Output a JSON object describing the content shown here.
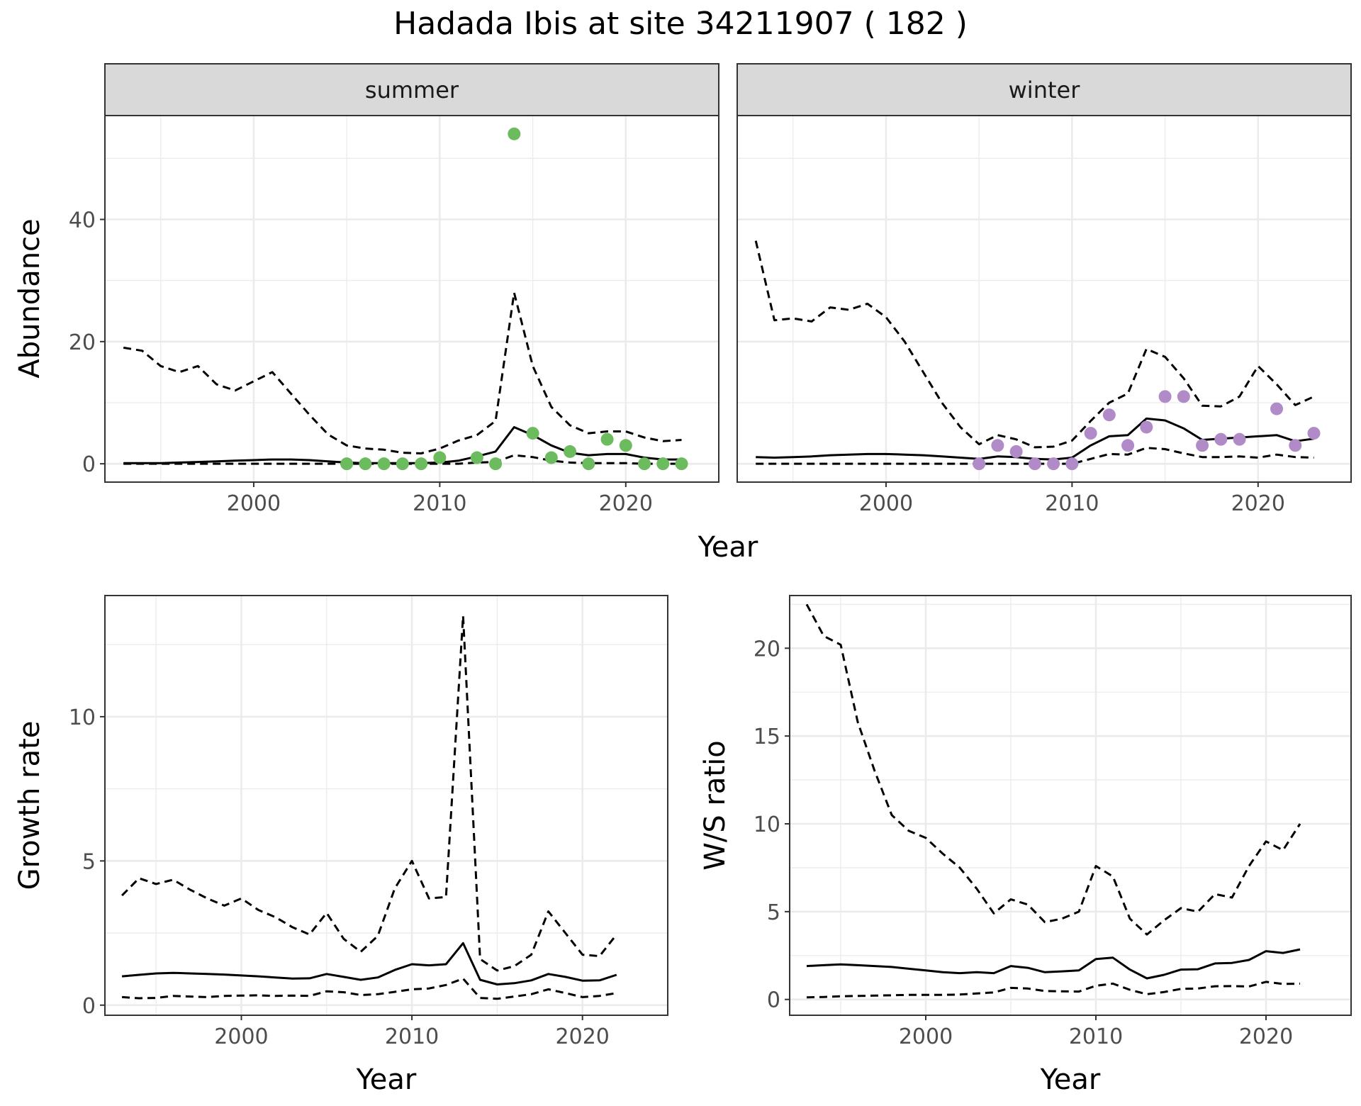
{
  "page_title": "Hadada Ibis at site 34211907 ( 182 )",
  "colors": {
    "summer_points": "#6DBB5F",
    "winter_points": "#B18AC8",
    "strip_bg": "#D9D9D9",
    "grid": "#EBEBEB",
    "line": "#000000"
  },
  "chart_data": [
    {
      "id": "abundance",
      "type": "line",
      "title": "",
      "xlabel": "Year",
      "ylabel": "Abundance",
      "xlim": [
        1992,
        2025
      ],
      "ylim": [
        -3,
        57
      ],
      "x_ticks": [
        2000,
        2010,
        2020
      ],
      "y_ticks": [
        0,
        20,
        40
      ],
      "grid": true,
      "panels": [
        {
          "name": "summer",
          "mean": {
            "x": [
              1993,
              1994,
              1995,
              1996,
              1997,
              1998,
              1999,
              2000,
              2001,
              2002,
              2003,
              2004,
              2005,
              2006,
              2007,
              2008,
              2009,
              2010,
              2011,
              2012,
              2013,
              2014,
              2015,
              2016,
              2017,
              2018,
              2019,
              2020,
              2021,
              2022,
              2023
            ],
            "y": [
              0.1,
              0.1,
              0.1,
              0.2,
              0.3,
              0.4,
              0.5,
              0.6,
              0.7,
              0.7,
              0.6,
              0.4,
              0.2,
              0.1,
              0.1,
              0.1,
              0.1,
              0.2,
              0.5,
              1.2,
              2,
              6,
              4.7,
              3,
              1.8,
              1.4,
              1.6,
              1.6,
              1,
              0.7,
              0.7
            ]
          },
          "upper": {
            "x": [
              1993,
              1994,
              1995,
              1996,
              1997,
              1998,
              1999,
              2000,
              2001,
              2002,
              2003,
              2004,
              2005,
              2006,
              2007,
              2008,
              2009,
              2010,
              2011,
              2012,
              2013,
              2014,
              2015,
              2016,
              2017,
              2018,
              2019,
              2020,
              2021,
              2022,
              2023
            ],
            "y": [
              19,
              18.5,
              16,
              15,
              16,
              13,
              12,
              13.5,
              15,
              11.5,
              8,
              4.8,
              3,
              2.5,
              2.3,
              1.8,
              1.7,
              2.5,
              3.8,
              4.7,
              7,
              28,
              16,
              9.3,
              6.3,
              5,
              5.3,
              5.3,
              4.3,
              3.7,
              3.9
            ]
          },
          "lower": {
            "x": [
              1993,
              1994,
              1995,
              1996,
              1997,
              1998,
              1999,
              2000,
              2001,
              2002,
              2003,
              2004,
              2005,
              2006,
              2007,
              2008,
              2009,
              2010,
              2011,
              2012,
              2013,
              2014,
              2015,
              2016,
              2017,
              2018,
              2019,
              2020,
              2021,
              2022,
              2023
            ],
            "y": [
              0,
              0,
              0,
              0,
              0,
              0,
              0,
              0,
              0,
              0,
              0,
              0,
              0,
              0,
              0,
              0,
              0,
              0,
              0,
              0.2,
              0.3,
              1.4,
              1.1,
              0.5,
              0.2,
              0.1,
              0.1,
              0.1,
              0,
              0,
              0
            ]
          },
          "points": {
            "x": [
              2005,
              2006,
              2007,
              2008,
              2009,
              2010,
              2012,
              2013,
              2014,
              2015,
              2016,
              2017,
              2018,
              2019,
              2020,
              2021,
              2022,
              2023
            ],
            "y": [
              0,
              0,
              0,
              0,
              0,
              1,
              1,
              0,
              54,
              5,
              1,
              2,
              0,
              4,
              3,
              0,
              0,
              0
            ]
          }
        },
        {
          "name": "winter",
          "mean": {
            "x": [
              1993,
              1994,
              1995,
              1996,
              1997,
              1998,
              1999,
              2000,
              2001,
              2002,
              2003,
              2004,
              2005,
              2006,
              2007,
              2008,
              2009,
              2010,
              2011,
              2012,
              2013,
              2014,
              2015,
              2016,
              2017,
              2018,
              2019,
              2020,
              2021,
              2022,
              2023
            ],
            "y": [
              1.1,
              1,
              1.1,
              1.2,
              1.4,
              1.5,
              1.6,
              1.6,
              1.5,
              1.4,
              1.2,
              1,
              0.8,
              1.2,
              1.1,
              0.8,
              0.7,
              1,
              3,
              4.5,
              4.7,
              7.4,
              7.1,
              5.8,
              3.9,
              4.1,
              4.3,
              4.5,
              4.7,
              3.7,
              4.1
            ]
          },
          "upper": {
            "x": [
              1993,
              1994,
              1995,
              1996,
              1997,
              1998,
              1999,
              2000,
              2001,
              2002,
              2003,
              2004,
              2005,
              2006,
              2007,
              2008,
              2009,
              2010,
              2011,
              2012,
              2013,
              2014,
              2015,
              2016,
              2017,
              2018,
              2019,
              2020,
              2021,
              2022,
              2023
            ],
            "y": [
              36.5,
              23.5,
              23.8,
              23.3,
              25.6,
              25.2,
              26.2,
              24,
              20,
              15,
              10,
              6,
              3.2,
              4.7,
              4,
              2.7,
              2.8,
              3.8,
              7,
              10,
              11.5,
              18.8,
              17.5,
              14,
              9.5,
              9.4,
              11,
              16,
              13,
              9.6,
              11
            ]
          },
          "lower": {
            "x": [
              1993,
              1994,
              1995,
              1996,
              1997,
              1998,
              1999,
              2000,
              2001,
              2002,
              2003,
              2004,
              2005,
              2006,
              2007,
              2008,
              2009,
              2010,
              2011,
              2012,
              2013,
              2014,
              2015,
              2016,
              2017,
              2018,
              2019,
              2020,
              2021,
              2022,
              2023
            ],
            "y": [
              0,
              0,
              0,
              0,
              0,
              0,
              0,
              0,
              0,
              0,
              0,
              0,
              0,
              0,
              0,
              0,
              0,
              0,
              0.8,
              1.6,
              1.5,
              2.6,
              2.4,
              1.7,
              1.1,
              1.1,
              1.2,
              1,
              1.5,
              1.1,
              1
            ]
          },
          "points": {
            "x": [
              2005,
              2006,
              2007,
              2008,
              2009,
              2010,
              2011,
              2012,
              2013,
              2014,
              2015,
              2016,
              2017,
              2018,
              2019,
              2021,
              2022,
              2023
            ],
            "y": [
              0,
              3,
              2,
              0,
              0,
              0,
              5,
              8,
              3,
              6,
              11,
              11,
              3,
              4,
              4,
              9,
              3,
              5
            ]
          }
        }
      ]
    },
    {
      "id": "growth",
      "type": "line",
      "title": "",
      "xlabel": "Year",
      "ylabel": "Growth rate",
      "xlim": [
        1992,
        2025
      ],
      "ylim": [
        -0.35,
        14.2
      ],
      "x_ticks": [
        2000,
        2010,
        2020
      ],
      "y_ticks": [
        0,
        5,
        10
      ],
      "grid": true,
      "mean": {
        "x": [
          1993,
          1994,
          1995,
          1996,
          1997,
          1998,
          1999,
          2000,
          2001,
          2002,
          2003,
          2004,
          2005,
          2006,
          2007,
          2008,
          2009,
          2010,
          2011,
          2012,
          2013,
          2014,
          2015,
          2016,
          2017,
          2018,
          2019,
          2020,
          2021,
          2022
        ],
        "y": [
          1,
          1.05,
          1.1,
          1.12,
          1.1,
          1.08,
          1.06,
          1.03,
          1,
          0.96,
          0.92,
          0.93,
          1.08,
          0.98,
          0.88,
          0.96,
          1.22,
          1.42,
          1.38,
          1.42,
          2.15,
          0.88,
          0.72,
          0.76,
          0.86,
          1.08,
          0.98,
          0.85,
          0.86,
          1.05
        ]
      },
      "upper": {
        "x": [
          1993,
          1994,
          1995,
          1996,
          1997,
          1998,
          1999,
          2000,
          2001,
          2002,
          2003,
          2004,
          2005,
          2006,
          2007,
          2008,
          2009,
          2010,
          2011,
          2012,
          2013,
          2014,
          2015,
          2016,
          2017,
          2018,
          2019,
          2020,
          2021,
          2022
        ],
        "y": [
          3.8,
          4.4,
          4.2,
          4.35,
          4,
          3.7,
          3.45,
          3.7,
          3.3,
          3.05,
          2.7,
          2.45,
          3.2,
          2.3,
          1.85,
          2.4,
          4.05,
          5,
          3.7,
          3.75,
          13.5,
          1.6,
          1.2,
          1.35,
          1.75,
          3.25,
          2.5,
          1.75,
          1.7,
          2.45
        ]
      },
      "lower": {
        "x": [
          1993,
          1994,
          1995,
          1996,
          1997,
          1998,
          1999,
          2000,
          2001,
          2002,
          2003,
          2004,
          2005,
          2006,
          2007,
          2008,
          2009,
          2010,
          2011,
          2012,
          2013,
          2014,
          2015,
          2016,
          2017,
          2018,
          2019,
          2020,
          2021,
          2022
        ],
        "y": [
          0.28,
          0.24,
          0.25,
          0.32,
          0.3,
          0.28,
          0.32,
          0.33,
          0.34,
          0.32,
          0.33,
          0.32,
          0.48,
          0.45,
          0.35,
          0.38,
          0.46,
          0.55,
          0.58,
          0.7,
          0.92,
          0.25,
          0.22,
          0.3,
          0.38,
          0.55,
          0.42,
          0.28,
          0.32,
          0.42
        ]
      }
    },
    {
      "id": "ws_ratio",
      "type": "line",
      "title": "",
      "xlabel": "Year",
      "ylabel": "W/S ratio",
      "xlim": [
        1992,
        2025
      ],
      "ylim": [
        -0.9,
        23
      ],
      "x_ticks": [
        2000,
        2010,
        2020
      ],
      "y_ticks": [
        0,
        5,
        10,
        15,
        20
      ],
      "grid": true,
      "mean": {
        "x": [
          1993,
          1994,
          1995,
          1996,
          1997,
          1998,
          1999,
          2000,
          2001,
          2002,
          2003,
          2004,
          2005,
          2006,
          2007,
          2008,
          2009,
          2010,
          2011,
          2012,
          2013,
          2014,
          2015,
          2016,
          2017,
          2018,
          2019,
          2020,
          2021,
          2022
        ],
        "y": [
          1.9,
          1.95,
          2,
          1.95,
          1.9,
          1.85,
          1.75,
          1.65,
          1.55,
          1.5,
          1.55,
          1.5,
          1.9,
          1.8,
          1.55,
          1.6,
          1.65,
          2.3,
          2.38,
          1.7,
          1.2,
          1.4,
          1.7,
          1.72,
          2.05,
          2.08,
          2.25,
          2.75,
          2.65,
          2.85
        ]
      },
      "upper": {
        "x": [
          1993,
          1994,
          1995,
          1996,
          1997,
          1998,
          1999,
          2000,
          2001,
          2002,
          2003,
          2004,
          2005,
          2006,
          2007,
          2008,
          2009,
          2010,
          2011,
          2012,
          2013,
          2014,
          2015,
          2016,
          2017,
          2018,
          2019,
          2020,
          2021,
          2022
        ],
        "y": [
          22.5,
          20.7,
          20.2,
          15.8,
          13,
          10.5,
          9.6,
          9.2,
          8.3,
          7.5,
          6.3,
          4.9,
          5.7,
          5.4,
          4.4,
          4.6,
          5,
          7.6,
          7,
          4.6,
          3.7,
          4.5,
          5.2,
          5,
          6,
          5.8,
          7.6,
          9,
          8.5,
          10
        ]
      },
      "lower": {
        "x": [
          1993,
          1994,
          1995,
          1996,
          1997,
          1998,
          1999,
          2000,
          2001,
          2002,
          2003,
          2004,
          2005,
          2006,
          2007,
          2008,
          2009,
          2010,
          2011,
          2012,
          2013,
          2014,
          2015,
          2016,
          2017,
          2018,
          2019,
          2020,
          2021,
          2022
        ],
        "y": [
          0.12,
          0.14,
          0.18,
          0.2,
          0.22,
          0.24,
          0.26,
          0.26,
          0.26,
          0.28,
          0.34,
          0.4,
          0.66,
          0.62,
          0.48,
          0.46,
          0.45,
          0.78,
          0.9,
          0.55,
          0.3,
          0.42,
          0.6,
          0.62,
          0.75,
          0.76,
          0.74,
          1,
          0.88,
          0.9
        ]
      }
    }
  ]
}
